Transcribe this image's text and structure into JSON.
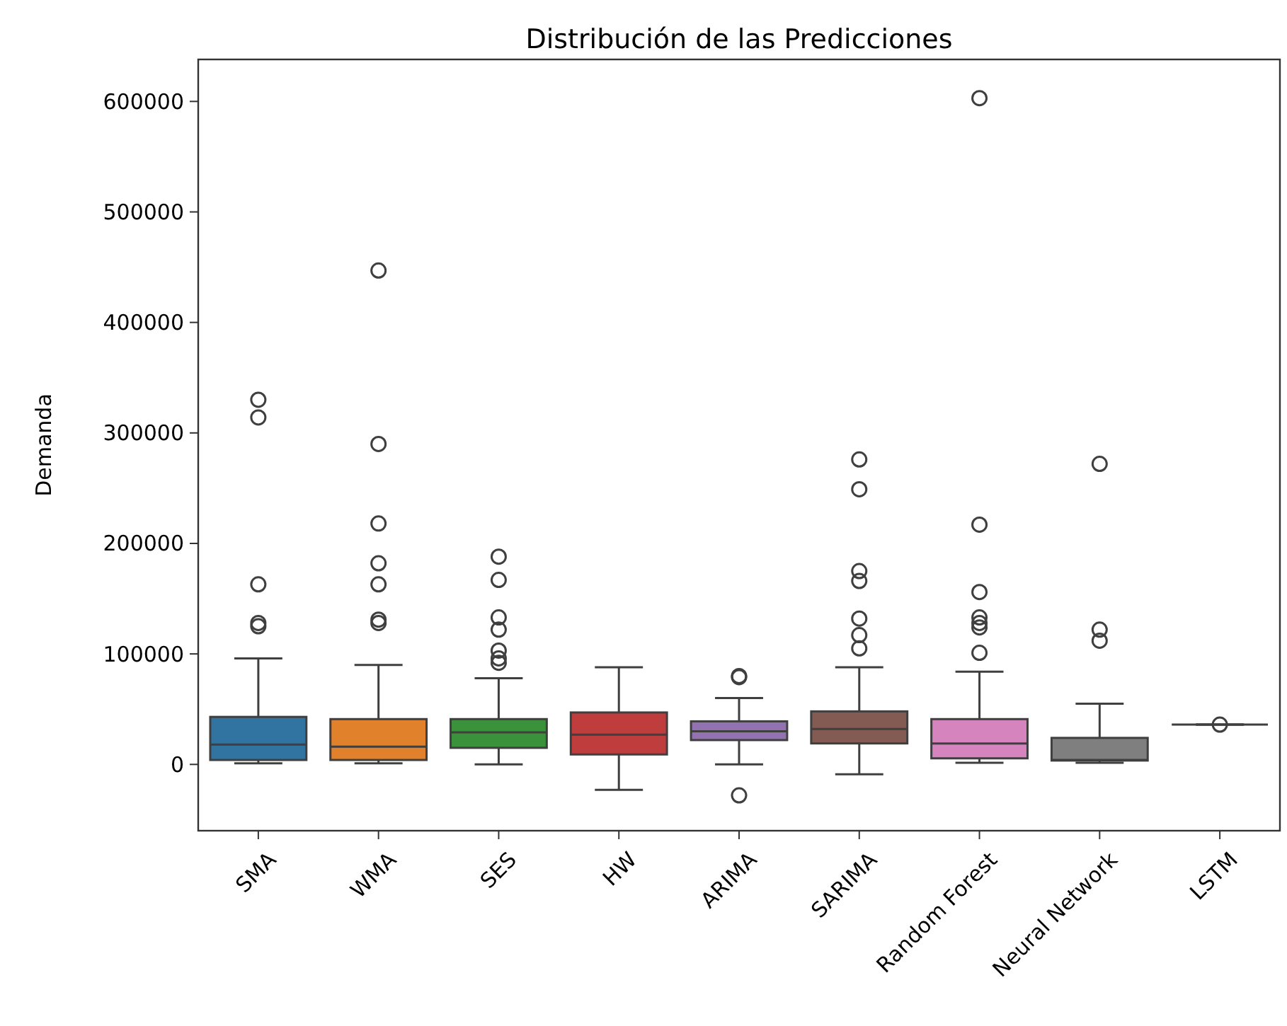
{
  "chart_data": {
    "type": "box",
    "title": "Distribución de las Predicciones",
    "ylabel": "Demanda",
    "categories": [
      "SMA",
      "WMA",
      "SES",
      "HW",
      "ARIMA",
      "SARIMA",
      "Random Forest",
      "Neural Network",
      "LSTM"
    ],
    "colors": [
      "#3274a1",
      "#e1812c",
      "#3a923a",
      "#c03d3e",
      "#9372b2",
      "#845b53",
      "#d684bd",
      "#7f7f7f",
      "#3f3f3f"
    ],
    "boxes": [
      {
        "low": 1000,
        "q1": 4000,
        "median": 18000,
        "q3": 43000,
        "high": 96000,
        "outliers": [
          330000,
          314000,
          163000,
          128000,
          125000
        ]
      },
      {
        "low": 1000,
        "q1": 4000,
        "median": 16000,
        "q3": 41000,
        "high": 90000,
        "outliers": [
          447000,
          290000,
          218000,
          182000,
          163000,
          131000,
          128000
        ]
      },
      {
        "low": 0,
        "q1": 15000,
        "median": 29000,
        "q3": 41000,
        "high": 78000,
        "outliers": [
          188000,
          167000,
          133000,
          122000,
          103000,
          96000,
          92000
        ]
      },
      {
        "low": -23000,
        "q1": 9000,
        "median": 27000,
        "q3": 47000,
        "high": 88000
      },
      {
        "low": 0,
        "q1": 22000,
        "median": 30000,
        "q3": 39000,
        "high": 60000,
        "outliers": [
          80000,
          79000,
          -28000
        ]
      },
      {
        "low": -9000,
        "q1": 19000,
        "median": 32000,
        "q3": 48000,
        "high": 88000,
        "outliers": [
          276000,
          249000,
          175000,
          166000,
          132000,
          117000,
          105000
        ]
      },
      {
        "low": 1500,
        "q1": 5500,
        "median": 19000,
        "q3": 41000,
        "high": 84000,
        "outliers": [
          603000,
          217000,
          156000,
          133000,
          128000,
          124000,
          101000
        ]
      },
      {
        "low": 1500,
        "q1": 3500,
        "median": 4000,
        "q3": 24000,
        "high": 55000,
        "outliers": [
          272000,
          122000,
          112000
        ]
      },
      {
        "low": 36000,
        "q1": 36000,
        "median": 36000,
        "q3": 36000,
        "high": 36000,
        "outliers": [
          36000
        ]
      }
    ],
    "ylim": [
      -60000,
      638000
    ],
    "yticks": [
      0,
      100000,
      200000,
      300000,
      400000,
      500000,
      600000
    ],
    "grid": false
  }
}
